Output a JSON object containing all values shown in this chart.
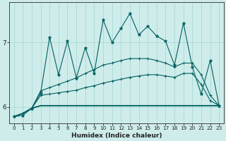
{
  "xlabel": "Humidex (Indice chaleur)",
  "bg_color": "#ceecea",
  "grid_color": "#aad8d5",
  "line_color": "#006060",
  "xlim": [
    -0.5,
    23.5
  ],
  "ylim": [
    5.75,
    7.62
  ],
  "yticks": [
    6,
    7
  ],
  "xticks": [
    0,
    1,
    2,
    3,
    4,
    5,
    6,
    7,
    8,
    9,
    10,
    11,
    12,
    13,
    14,
    15,
    16,
    17,
    18,
    19,
    20,
    21,
    22,
    23
  ],
  "line_flat_y": [
    5.85,
    5.9,
    5.98,
    6.02,
    6.02,
    6.02,
    6.02,
    6.02,
    6.02,
    6.02,
    6.02,
    6.02,
    6.02,
    6.02,
    6.02,
    6.02,
    6.02,
    6.02,
    6.02,
    6.02,
    6.02,
    6.02,
    6.02,
    6.02
  ],
  "line_low_y": [
    5.85,
    5.9,
    5.98,
    6.18,
    6.2,
    6.22,
    6.24,
    6.26,
    6.3,
    6.33,
    6.37,
    6.4,
    6.43,
    6.46,
    6.48,
    6.5,
    6.5,
    6.48,
    6.46,
    6.52,
    6.52,
    6.35,
    6.1,
    6.02
  ],
  "line_mid_y": [
    5.85,
    5.9,
    5.98,
    6.25,
    6.3,
    6.35,
    6.4,
    6.45,
    6.52,
    6.58,
    6.65,
    6.68,
    6.72,
    6.75,
    6.75,
    6.75,
    6.72,
    6.68,
    6.62,
    6.68,
    6.68,
    6.5,
    6.18,
    6.02
  ],
  "line_osc_y": [
    5.85,
    5.87,
    5.98,
    6.22,
    7.08,
    6.5,
    7.02,
    6.45,
    6.92,
    6.52,
    7.35,
    7.0,
    7.22,
    7.45,
    7.12,
    7.25,
    7.1,
    7.02,
    6.65,
    7.3,
    6.62,
    6.2,
    6.72,
    6.02
  ]
}
